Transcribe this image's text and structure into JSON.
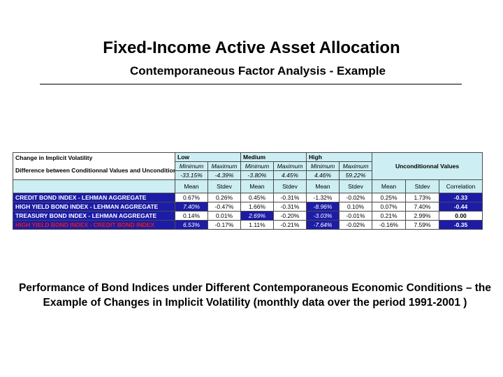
{
  "header": {
    "title": "Fixed-Income Active Asset Allocation",
    "subtitle": "Contemporaneous Factor Analysis - Example"
  },
  "table": {
    "corner_title": "Change in Implicit Volatility",
    "corner_desc": "Difference between Conditionnal Values and Unconditionnal Values",
    "groups": [
      "Low",
      "Medium",
      "High"
    ],
    "minmax_labels": [
      "Minimum",
      "Maximum",
      "Minimum",
      "Maximum",
      "Minimum",
      "Maximum"
    ],
    "minmax_values": [
      "-33.15%",
      "-4.39%",
      "-3.80%",
      "4.45%",
      "4.46%",
      "59.22%"
    ],
    "unconditional_label": "Unconditionnal Values",
    "stat_labels": [
      "Mean",
      "Stdev",
      "Mean",
      "Stdev",
      "Mean",
      "Stdev",
      "Mean",
      "Stdev",
      "Correlation"
    ],
    "rows": [
      {
        "label": "CREDIT BOND INDEX - LEHMAN AGGREGATE",
        "values": [
          "0.67%",
          "0.26%",
          "0.45%",
          "-0.31%",
          "-1.32%",
          "-0.02%",
          "0.25%",
          "1.73%",
          "-0.33"
        ]
      },
      {
        "label": "HIGH YIELD BOND INDEX - LEHMAN AGGREGATE",
        "values": [
          "7.40%",
          "-0.47%",
          "1.66%",
          "-0.31%",
          "-8.96%",
          "0.10%",
          "0.07%",
          "7.40%",
          "-0.44"
        ]
      },
      {
        "label": "TREASURY BOND INDEX - LEHMAN AGGREGATE",
        "values": [
          "0.14%",
          "0.01%",
          "2.69%",
          "-0.20%",
          "-3.03%",
          "-0.01%",
          "0.21%",
          "2.99%",
          "0.00"
        ]
      },
      {
        "label": "HIGH YIELD BOND INDEX - CREDIT BOND INDEX",
        "values": [
          "6.53%",
          "-0.17%",
          "1.11%",
          "-0.21%",
          "-7.64%",
          "-0.02%",
          "-0.16%",
          "7.59%",
          "-0.35"
        ]
      }
    ]
  },
  "caption": {
    "line1": "Performance of Bond Indices under Different Contemporaneous Economic Conditions – the",
    "line2": "Example of Changes in Implicit Volatility (monthly data over the period 1991-2001 )"
  }
}
